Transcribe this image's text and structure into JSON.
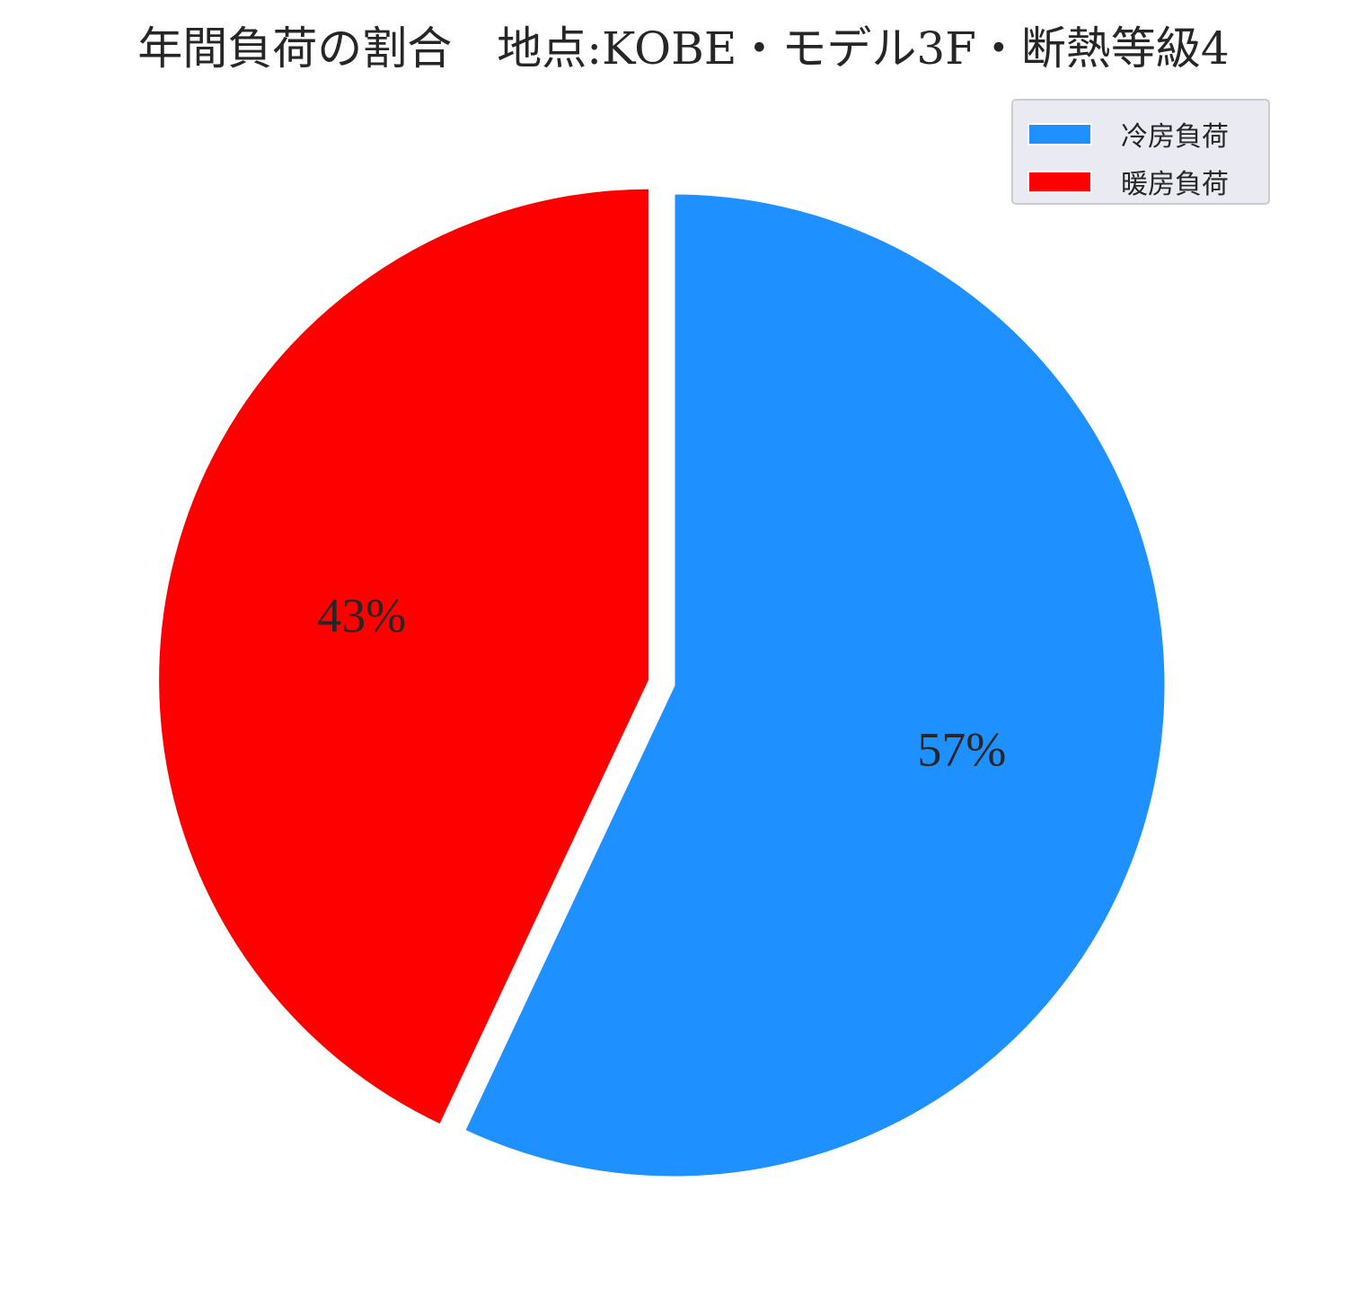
{
  "chart_data": {
    "type": "pie",
    "title": "年間負荷の割合　地点:KOBE・モデル3F・断熱等級4",
    "slices": [
      {
        "label": "冷房負荷",
        "value": 57,
        "display": "57%",
        "color": "#1e90ff"
      },
      {
        "label": "暖房負荷",
        "value": 43,
        "display": "43%",
        "color": "#ff0000"
      }
    ],
    "start_angle": "12 o'clock",
    "direction": "clockwise",
    "exploded": [
      "暖房負荷"
    ],
    "legend": {
      "position": "upper right",
      "entries": [
        "冷房負荷",
        "暖房負荷"
      ]
    }
  }
}
